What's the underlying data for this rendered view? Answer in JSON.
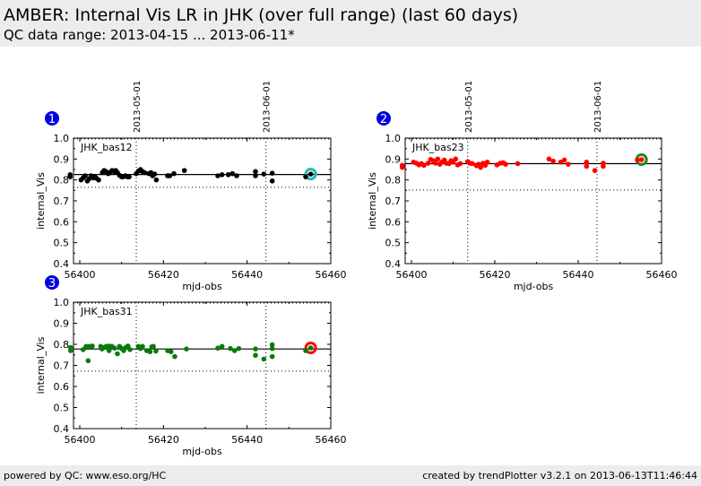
{
  "header": {
    "title": "AMBER: Internal Vis LR in JHK (over full range) (last 60 days)",
    "subtitle": "QC data range: 2013-04-15 ... 2013-06-11*"
  },
  "footer": {
    "left": "powered by QC: www.eso.org/HC",
    "right": "created by trendPlotter v3.2.1 on 2013-06-13T11:46:44"
  },
  "chart_data": [
    {
      "type": "scatter",
      "panel_number": "1",
      "label": "JHK_bas12",
      "xlabel": "mjd-obs",
      "ylabel": "internal_Vis",
      "xlim": [
        56398.5,
        56460
      ],
      "ylim": [
        0.4,
        1.0
      ],
      "xticks": [
        56400,
        56420,
        56440,
        56460
      ],
      "yticks": [
        0.4,
        0.5,
        0.6,
        0.7,
        0.8,
        0.9,
        1.0
      ],
      "ytick_labels": [
        "0.4",
        "0.5",
        "0.6",
        "0.7",
        "0.8",
        "0.9",
        "1.0"
      ],
      "date_markers": [
        {
          "x": 56413.5,
          "label": "2013-05-01"
        },
        {
          "x": 56444.5,
          "label": "2013-06-01"
        }
      ],
      "mean": 0.826,
      "lower_limit": 0.765,
      "upper_limit": 1.0,
      "color": "#000000",
      "highlight": {
        "x": 56455.2,
        "y": 0.828,
        "ring_color": "#20b8b8"
      },
      "x": [
        56397.7,
        56397.7,
        56400.3,
        56400.8,
        56401.3,
        56401.8,
        56402.2,
        56402.7,
        56403.2,
        56403.6,
        56404.0,
        56404.5,
        56405.4,
        56405.8,
        56406.3,
        56406.8,
        56407.2,
        56407.7,
        56408.2,
        56408.6,
        56409.0,
        56409.5,
        56410.0,
        56410.4,
        56410.9,
        56411.4,
        56411.8,
        56413.5,
        56414.0,
        56414.5,
        56415.0,
        56415.5,
        56416.5,
        56417.0,
        56417.4,
        56417.9,
        56418.3,
        56421.0,
        56421.5,
        56422.5,
        56425.0,
        56433.0,
        56434.0,
        56435.5,
        56436.5,
        56437.5,
        56442.0,
        56442.0,
        56444.0,
        56446.0,
        56446.0,
        56454.0,
        56455.2
      ],
      "y": [
        0.825,
        0.815,
        0.8,
        0.81,
        0.82,
        0.795,
        0.805,
        0.82,
        0.81,
        0.815,
        0.808,
        0.8,
        0.835,
        0.845,
        0.84,
        0.83,
        0.835,
        0.845,
        0.84,
        0.845,
        0.835,
        0.822,
        0.815,
        0.815,
        0.82,
        0.815,
        0.815,
        0.83,
        0.842,
        0.85,
        0.84,
        0.835,
        0.83,
        0.835,
        0.82,
        0.828,
        0.8,
        0.82,
        0.82,
        0.83,
        0.845,
        0.82,
        0.825,
        0.825,
        0.83,
        0.82,
        0.84,
        0.82,
        0.828,
        0.832,
        0.795,
        0.815,
        0.828
      ]
    },
    {
      "type": "scatter",
      "panel_number": "2",
      "label": "JHK_bas23",
      "xlabel": "mjd-obs",
      "ylabel": "internal_Vis",
      "xlim": [
        56398.5,
        56460
      ],
      "ylim": [
        0.4,
        1.0
      ],
      "xticks": [
        56400,
        56420,
        56440,
        56460
      ],
      "yticks": [
        0.4,
        0.5,
        0.6,
        0.7,
        0.8,
        0.9,
        1.0
      ],
      "ytick_labels": [
        "0.4",
        "0.5",
        "0.6",
        "0.7",
        "0.8",
        "0.9",
        "1.0"
      ],
      "date_markers": [
        {
          "x": 56413.5,
          "label": "2013-05-01"
        },
        {
          "x": 56444.5,
          "label": "2013-06-01"
        }
      ],
      "mean": 0.878,
      "lower_limit": 0.752,
      "upper_limit": 1.0,
      "color": "#ff0000",
      "highlight": {
        "x": 56455.2,
        "y": 0.897,
        "ring_color": "#1a8a1a"
      },
      "x": [
        56397.8,
        56397.8,
        56400.5,
        56401.2,
        56401.8,
        56402.4,
        56403.0,
        56404.0,
        56404.6,
        56405.2,
        56405.8,
        56406.3,
        56406.8,
        56407.3,
        56407.9,
        56408.4,
        56409.0,
        56409.5,
        56410.0,
        56410.6,
        56411.1,
        56411.7,
        56413.5,
        56414.0,
        56414.6,
        56415.6,
        56416.1,
        56416.6,
        56417.2,
        56417.7,
        56418.2,
        56420.5,
        56421.3,
        56422.0,
        56422.6,
        56425.5,
        56433.0,
        56434.0,
        56435.8,
        56436.7,
        56437.6,
        56442.0,
        56442.0,
        56444.0,
        56446.0,
        56446.0,
        56454.2,
        56455.2
      ],
      "y": [
        0.87,
        0.86,
        0.885,
        0.88,
        0.872,
        0.878,
        0.87,
        0.88,
        0.898,
        0.892,
        0.88,
        0.9,
        0.875,
        0.885,
        0.895,
        0.88,
        0.878,
        0.892,
        0.885,
        0.9,
        0.872,
        0.878,
        0.888,
        0.88,
        0.878,
        0.868,
        0.875,
        0.86,
        0.88,
        0.87,
        0.885,
        0.872,
        0.88,
        0.882,
        0.875,
        0.878,
        0.9,
        0.89,
        0.885,
        0.895,
        0.875,
        0.885,
        0.865,
        0.845,
        0.88,
        0.865,
        0.895,
        0.897
      ]
    },
    {
      "type": "scatter",
      "panel_number": "3",
      "label": "JHK_bas31",
      "xlabel": "mjd-obs",
      "ylabel": "internal_Vis",
      "xlim": [
        56398.5,
        56460
      ],
      "ylim": [
        0.4,
        1.0
      ],
      "xticks": [
        56400,
        56420,
        56440,
        56460
      ],
      "yticks": [
        0.4,
        0.5,
        0.6,
        0.7,
        0.8,
        0.9,
        1.0
      ],
      "ytick_labels": [
        "0.4",
        "0.5",
        "0.6",
        "0.7",
        "0.8",
        "0.9",
        "1.0"
      ],
      "date_markers": [
        {
          "x": 56413.5,
          "label": "2013-05-01"
        },
        {
          "x": 56444.5,
          "label": "2013-06-01"
        }
      ],
      "mean": 0.778,
      "lower_limit": 0.673,
      "upper_limit": 1.0,
      "color": "#0a7a0a",
      "highlight": {
        "x": 56455.2,
        "y": 0.783,
        "ring_color": "#ff0000"
      },
      "x": [
        56397.8,
        56397.8,
        56400.8,
        56401.5,
        56402.0,
        56402.3,
        56403.0,
        56405.0,
        56405.3,
        56405.8,
        56406.3,
        56407.0,
        56407.0,
        56407.7,
        56408.3,
        56409.0,
        56409.5,
        56410.0,
        56410.5,
        56411.0,
        56411.5,
        56412.0,
        56414.0,
        56414.5,
        56415.0,
        56416.0,
        56416.8,
        56417.2,
        56417.6,
        56418.2,
        56421.0,
        56421.8,
        56422.7,
        56425.5,
        56433.0,
        56434.0,
        56436.0,
        56437.0,
        56438.0,
        56442.0,
        56442.0,
        56444.0,
        56446.0,
        56446.0,
        56446.0,
        56454.0,
        56455.2
      ],
      "y": [
        0.785,
        0.77,
        0.775,
        0.79,
        0.722,
        0.79,
        0.792,
        0.79,
        0.778,
        0.785,
        0.79,
        0.792,
        0.77,
        0.79,
        0.782,
        0.755,
        0.79,
        0.78,
        0.77,
        0.785,
        0.792,
        0.775,
        0.79,
        0.78,
        0.79,
        0.77,
        0.765,
        0.788,
        0.79,
        0.768,
        0.77,
        0.765,
        0.742,
        0.778,
        0.782,
        0.79,
        0.78,
        0.77,
        0.78,
        0.778,
        0.748,
        0.73,
        0.798,
        0.78,
        0.742,
        0.77,
        0.783
      ]
    }
  ]
}
